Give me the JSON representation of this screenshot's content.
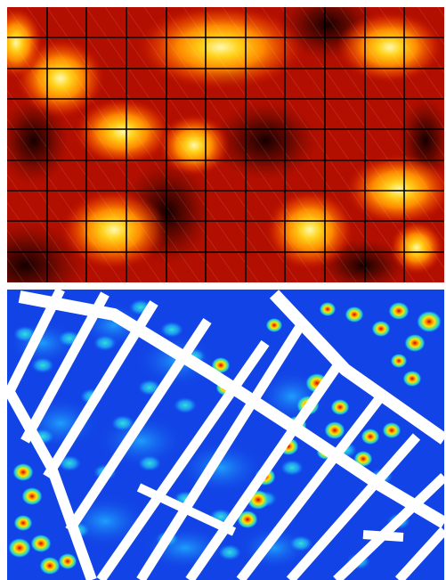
{
  "top_panel": {
    "colormap": "hot",
    "background": "#b30f00",
    "grid_color": "#000000",
    "grid_columns": 11,
    "grid_rows": 9,
    "diagonal_hatch": true,
    "hotspot_colors": [
      "#fff9a8",
      "#ffd21a",
      "#ff8a00",
      "#f04a00",
      "#c41400"
    ],
    "dark_color": "#1a0000"
  },
  "bottom_panel": {
    "colormap": "jet",
    "background": "#1243e6",
    "strip_color": "#ffffff",
    "diagonal_hatch": false,
    "spot_colors": [
      "#d10000",
      "#ff8a00",
      "#ffe000",
      "#9be45a",
      "#25d6c8",
      "#1ca0ff"
    ]
  }
}
